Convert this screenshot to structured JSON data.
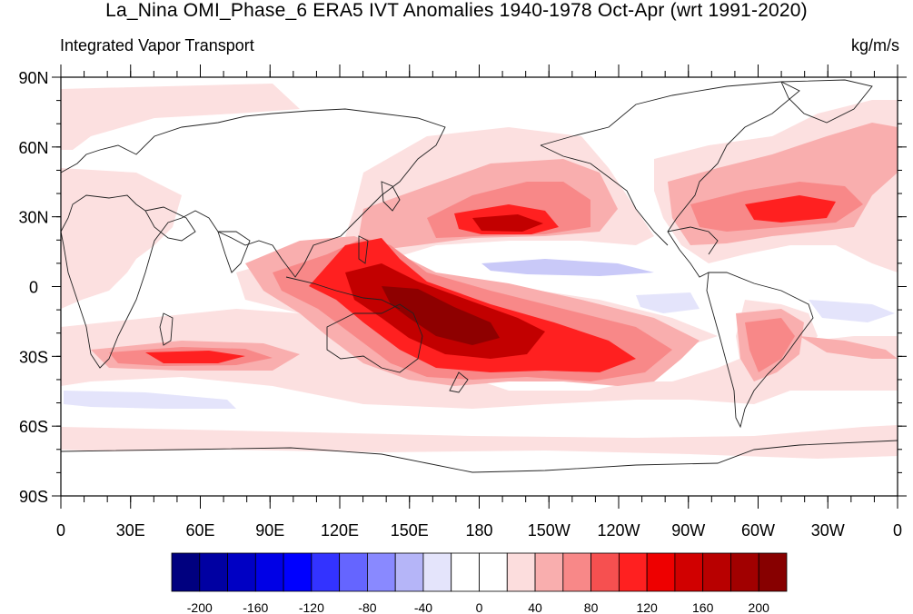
{
  "title": "La_Nina OMI_Phase_6 ERA5 IVT Anomalies 1940-1978 Oct-Apr (wrt 1991-2020)",
  "left_string": "Integrated Vapor Transport",
  "right_string": "kg/m/s",
  "map": {
    "projection": "cylindrical equidistant",
    "lon_range": [
      0,
      360
    ],
    "lat_range": [
      -90,
      90
    ],
    "lon_tick_labels": [
      "0",
      "30E",
      "60E",
      "90E",
      "120E",
      "150E",
      "180",
      "150W",
      "120W",
      "90W",
      "60W",
      "30W",
      "0"
    ],
    "lat_tick_labels": [
      "90N",
      "60N",
      "30N",
      "0",
      "30S",
      "60S",
      "90S"
    ]
  },
  "colorbar": {
    "label_values": [
      "-200",
      "-160",
      "-120",
      "-80",
      "-40",
      "0",
      "40",
      "80",
      "120",
      "160",
      "200"
    ],
    "colors": [
      "#00007f",
      "#0000a2",
      "#0000c4",
      "#0000e6",
      "#0000ff",
      "#3333ff",
      "#6565ff",
      "#8989ff",
      "#b5b5f8",
      "#e4e4fb",
      "#ffffff",
      "#ffffff",
      "#fcdddd",
      "#f9aeae",
      "#f88888",
      "#f65050",
      "#ff2020",
      "#ee0000",
      "#d10000",
      "#b80000",
      "#a10000",
      "#870000"
    ]
  }
}
